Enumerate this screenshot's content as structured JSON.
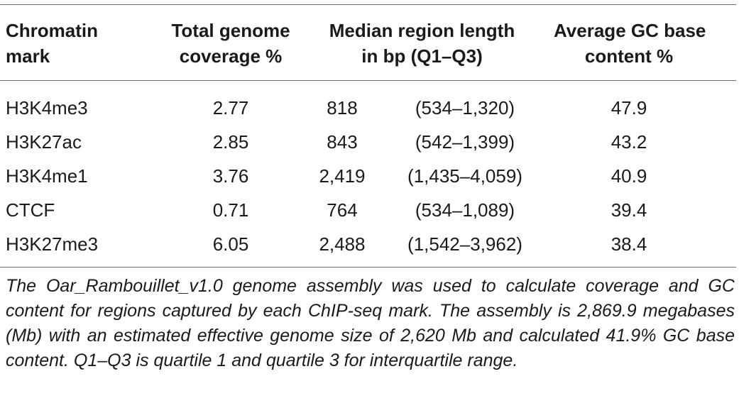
{
  "table": {
    "headers": {
      "mark": [
        "Chromatin",
        "mark"
      ],
      "coverage": [
        "Total genome",
        "coverage %"
      ],
      "median": [
        "Median region length",
        "in bp (Q1–Q3)"
      ],
      "gc": [
        "Average GC base",
        "content %"
      ]
    },
    "rows": [
      {
        "mark": "H3K4me3",
        "coverage": "2.77",
        "median": "818",
        "iqr": "(534–1,320)",
        "gc": "47.9"
      },
      {
        "mark": "H3K27ac",
        "coverage": "2.85",
        "median": "843",
        "iqr": "(542–1,399)",
        "gc": "43.2"
      },
      {
        "mark": "H3K4me1",
        "coverage": "3.76",
        "median": "2,419",
        "iqr": "(1,435–4,059)",
        "gc": "40.9"
      },
      {
        "mark": "CTCF",
        "coverage": "0.71",
        "median": "764",
        "iqr": "(534–1,089)",
        "gc": "39.4"
      },
      {
        "mark": "H3K27me3",
        "coverage": "6.05",
        "median": "2,488",
        "iqr": "(1,542–3,962)",
        "gc": "38.4"
      }
    ],
    "footnote": "The Oar_Rambouillet_v1.0 genome assembly was used to calculate coverage and GC content for regions captured by each ChIP-seq mark. The assembly is 2,869.9 megabases (Mb) with an estimated effective genome size of 2,620 Mb and calculated 41.9% GC base content. Q1–Q3 is quartile 1 and quartile 3 for interquartile range."
  }
}
